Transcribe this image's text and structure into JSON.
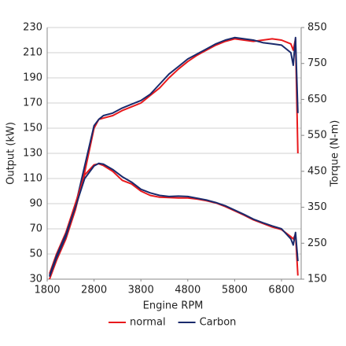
{
  "chart_data": {
    "type": "line",
    "x_label": "Engine RPM",
    "y_label": "Output (kW)",
    "y2_label": "Torque (N-m)",
    "x": [
      1850,
      2000,
      2200,
      2400,
      2600,
      2800,
      2900,
      3000,
      3200,
      3400,
      3600,
      3800,
      4000,
      4200,
      4400,
      4600,
      4800,
      5000,
      5200,
      5400,
      5600,
      5800,
      6000,
      6200,
      6400,
      6600,
      6800,
      7000,
      7050,
      7100,
      7150
    ],
    "xlim": [
      1800,
      7220
    ],
    "xticks": [
      1800,
      2800,
      3800,
      4800,
      5800,
      6800
    ],
    "ylim": [
      30,
      230
    ],
    "yticks": [
      30,
      50,
      70,
      90,
      110,
      130,
      150,
      170,
      190,
      210,
      230
    ],
    "y2lim": [
      150,
      850
    ],
    "y2ticks": [
      150,
      250,
      350,
      450,
      550,
      650,
      750,
      850
    ],
    "grid": true,
    "series": [
      {
        "name": "normal",
        "color": "#e8191c",
        "values": [
          30,
          45,
          62,
          85,
          115,
          150,
          157,
          158,
          160,
          164,
          167,
          170,
          176,
          182,
          190,
          197,
          203,
          208,
          212,
          216,
          219,
          221,
          220,
          219,
          220,
          221,
          220,
          217,
          212,
          221,
          130
        ]
      },
      {
        "name": "Carbon",
        "color": "#1a2a6c",
        "values": [
          32,
          47,
          64,
          88,
          120,
          152,
          157,
          160,
          162,
          166,
          169,
          172,
          177,
          185,
          193,
          199,
          205,
          209,
          213,
          217,
          220,
          222,
          221,
          220,
          218,
          217,
          216,
          210,
          200,
          222,
          162
        ]
      },
      {
        "name": "normal",
        "color": "#e8191c",
        "axis": "y2",
        "values": [
          165,
          220,
          280,
          360,
          440,
          468,
          471,
          466,
          450,
          425,
          415,
          395,
          383,
          378,
          377,
          376,
          376,
          373,
          368,
          362,
          352,
          340,
          328,
          315,
          305,
          295,
          288,
          268,
          262,
          275,
          160
        ]
      },
      {
        "name": "Carbon",
        "color": "#1a2a6c",
        "axis": "y2",
        "values": [
          160,
          215,
          275,
          350,
          430,
          465,
          472,
          470,
          455,
          435,
          420,
          400,
          390,
          383,
          380,
          381,
          380,
          375,
          370,
          363,
          354,
          342,
          330,
          317,
          307,
          298,
          290,
          262,
          245,
          280,
          200
        ]
      }
    ]
  }
}
